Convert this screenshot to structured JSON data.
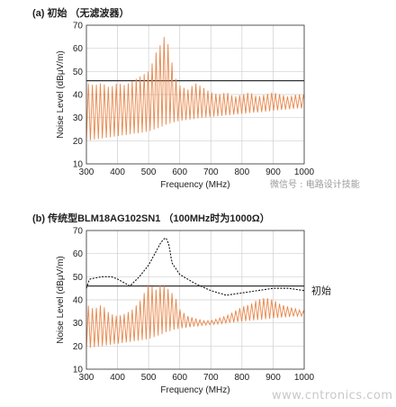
{
  "panels": {
    "a_title": "(a)  初始 （无滤波器）",
    "b_title": "(b)  传统型BLM18AG102SN1 （100MHz时为1000Ω）"
  },
  "watermark": "微信号  : 电路设计技能",
  "site_watermark": "www.cntronics.com",
  "colors": {
    "noise": "#e8864a",
    "limit": "#333333",
    "initial": "#111111"
  },
  "chart_data": [
    {
      "type": "line",
      "panel": "a",
      "xlabel": "Frequency (MHz)",
      "ylabel": "Noise Level (dBμV/m)",
      "xlim": [
        300,
        1000
      ],
      "ylim": [
        10,
        70
      ],
      "xticks": [
        300,
        400,
        500,
        600,
        700,
        800,
        900,
        1000
      ],
      "yticks": [
        10,
        20,
        30,
        40,
        50,
        60,
        70
      ],
      "series": [
        {
          "style": "limit",
          "x": [
            300,
            1000
          ],
          "y": [
            46,
            46
          ]
        },
        {
          "style": "noise",
          "x": [
            300,
            325,
            350,
            375,
            400,
            425,
            450,
            475,
            500,
            510,
            520,
            530,
            540,
            550,
            555,
            560,
            570,
            580,
            590,
            600,
            625,
            650,
            675,
            700,
            725,
            750,
            775,
            800,
            825,
            850,
            875,
            900,
            925,
            950,
            975,
            1000
          ],
          "peak": [
            45,
            44,
            45,
            43,
            45,
            44,
            46,
            48,
            50,
            53,
            57,
            60,
            62,
            65,
            67,
            63,
            58,
            50,
            46,
            44,
            42,
            45,
            43,
            41,
            40,
            41,
            39,
            40,
            41,
            39,
            40,
            41,
            40,
            39,
            40,
            40
          ],
          "floor": [
            20,
            20.5,
            21,
            21.5,
            22,
            22.5,
            23,
            23.5,
            24,
            24.5,
            25,
            25.5,
            26,
            26.5,
            27,
            27,
            27.5,
            28,
            28.3,
            28.6,
            29,
            29.5,
            30,
            30.3,
            30.6,
            31,
            31.3,
            31.6,
            32,
            32.3,
            32.6,
            33,
            33.3,
            33.6,
            34,
            34
          ]
        }
      ]
    },
    {
      "type": "line",
      "panel": "b",
      "xlabel": "Frequency (MHz)",
      "ylabel": "Noise Level (dBμV/m)",
      "xlim": [
        300,
        1000
      ],
      "ylim": [
        10,
        70
      ],
      "xticks": [
        300,
        400,
        500,
        600,
        700,
        800,
        900,
        1000
      ],
      "yticks": [
        10,
        20,
        30,
        40,
        50,
        60,
        70
      ],
      "annotation": "初始",
      "series": [
        {
          "style": "limit",
          "x": [
            300,
            1000
          ],
          "y": [
            46,
            46
          ]
        },
        {
          "style": "initial",
          "x": [
            300,
            310,
            350,
            380,
            400,
            440,
            470,
            500,
            520,
            540,
            555,
            565,
            575,
            600,
            650,
            700,
            750,
            800,
            850,
            900,
            950,
            1000
          ],
          "y": [
            45,
            49,
            50,
            50,
            49,
            46,
            50,
            55,
            60,
            65,
            67,
            64,
            56,
            51,
            47,
            44,
            42,
            43,
            44,
            45,
            45,
            44
          ]
        },
        {
          "style": "noise",
          "x": [
            300,
            325,
            350,
            375,
            400,
            425,
            450,
            475,
            500,
            510,
            520,
            530,
            540,
            550,
            555,
            560,
            570,
            580,
            590,
            600,
            625,
            650,
            675,
            700,
            725,
            750,
            775,
            800,
            825,
            850,
            875,
            900,
            925,
            950,
            975,
            1000
          ],
          "peak": [
            38,
            36,
            38,
            34,
            33,
            34,
            36,
            40,
            47,
            46,
            44,
            45,
            47,
            46,
            48,
            45,
            44,
            42,
            40,
            36,
            33,
            32,
            31,
            31,
            32,
            33,
            35,
            37,
            38,
            40,
            41,
            40,
            38,
            37,
            36,
            35
          ],
          "floor": [
            19,
            19.5,
            20,
            20.5,
            21,
            21.5,
            22,
            22.5,
            23,
            23.5,
            24,
            24.5,
            25,
            25.5,
            26,
            26,
            26.5,
            27,
            27.3,
            27.6,
            28,
            28.5,
            29,
            29.3,
            29.6,
            30,
            30.3,
            30.6,
            31,
            31.3,
            31.6,
            32,
            32.3,
            32.6,
            33,
            33
          ]
        }
      ]
    }
  ]
}
